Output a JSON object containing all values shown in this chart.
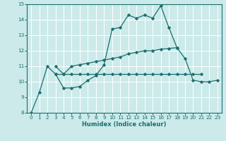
{
  "xlabel": "Humidex (Indice chaleur)",
  "xlim": [
    -0.5,
    23.5
  ],
  "ylim": [
    8,
    15
  ],
  "xticks": [
    0,
    1,
    2,
    3,
    4,
    5,
    6,
    7,
    8,
    9,
    10,
    11,
    12,
    13,
    14,
    15,
    16,
    17,
    18,
    19,
    20,
    21,
    22,
    23
  ],
  "yticks": [
    8,
    9,
    10,
    11,
    12,
    13,
    14,
    15
  ],
  "bg_color": "#cceaea",
  "line_color": "#1a6e6e",
  "grid_color": "#ffffff",
  "lines": [
    {
      "x": [
        0,
        1,
        2,
        3,
        4,
        5,
        6,
        7,
        8,
        9,
        10,
        11,
        12,
        13,
        14,
        15,
        16,
        17,
        18,
        19,
        20,
        21,
        22,
        23
      ],
      "y": [
        8.0,
        9.3,
        11.0,
        10.5,
        9.6,
        9.6,
        9.7,
        10.1,
        10.4,
        11.1,
        13.4,
        13.5,
        14.3,
        14.1,
        14.3,
        14.1,
        14.9,
        13.5,
        12.2,
        11.5,
        10.1,
        10.0,
        10.0,
        10.1
      ]
    },
    {
      "x": [
        3,
        4,
        5,
        6,
        7,
        8,
        9,
        10,
        11,
        12,
        13,
        14,
        15,
        16,
        17,
        18
      ],
      "y": [
        11.0,
        10.5,
        11.0,
        11.1,
        11.2,
        11.3,
        11.4,
        11.5,
        11.6,
        11.8,
        11.9,
        12.0,
        12.0,
        12.1,
        12.15,
        12.2
      ]
    },
    {
      "x": [
        3,
        4,
        5,
        6,
        7,
        8,
        9,
        10,
        11,
        12,
        13,
        14,
        15,
        16,
        17,
        18,
        19,
        20,
        21
      ],
      "y": [
        10.5,
        10.5,
        10.5,
        10.5,
        10.5,
        10.5,
        10.5,
        10.5,
        10.5,
        10.5,
        10.5,
        10.5,
        10.5,
        10.5,
        10.5,
        10.5,
        10.5,
        10.5,
        10.5
      ]
    }
  ]
}
